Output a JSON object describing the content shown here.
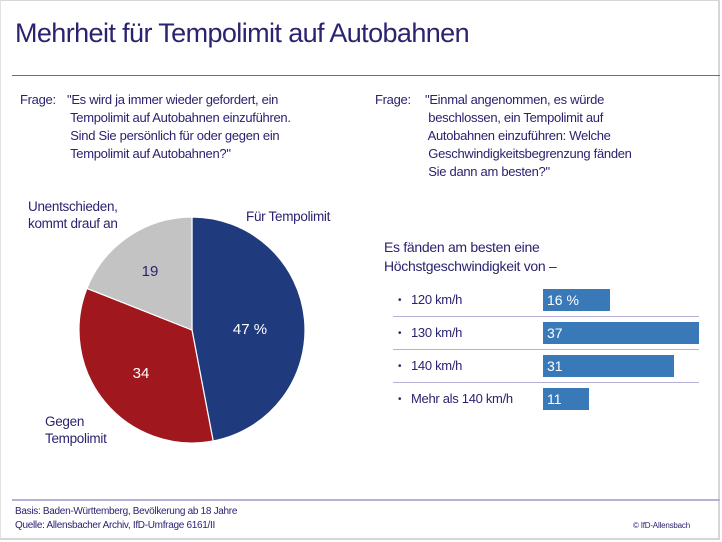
{
  "title": "Mehrheit für Tempolimit auf Autobahnen",
  "question1": {
    "label": "Frage:",
    "text": "\"Es wird ja immer wieder gefordert, ein\n Tempolimit auf Autobahnen einzuführen.\n Sind Sie persönlich für oder gegen ein\n Tempolimit auf Autobahnen?\""
  },
  "question2": {
    "label": "Frage:",
    "text": "\"Einmal angenommen, es würde\n beschlossen, ein Tempolimit auf\n Autobahnen einzuführen: Welche\n Geschwindigkeitsbegrenzung fänden\n Sie dann am besten?\""
  },
  "footer": {
    "basis": "Basis: Baden-Württemberg, Bevölkerung ab 18 Jahre",
    "quelle": "Quelle: Allensbacher Archiv, IfD-Umfrage 6161/II",
    "copyright": "© IfD-Allensbach"
  },
  "colors": {
    "fuer": "#1f3a7d",
    "gegen": "#a0181e",
    "unentschieden": "#c4c3c3",
    "bar": "#3a79b8",
    "text": "#2a2370"
  },
  "chart_data": [
    {
      "type": "pie",
      "title": "",
      "slices": [
        {
          "label": "Für Tempolimit",
          "value": 47,
          "display": "47 %"
        },
        {
          "label": "Gegen\nTempolimit",
          "value": 34,
          "display": "34"
        },
        {
          "label": "Unentschieden,\nkommt drauf an",
          "value": 19,
          "display": "19"
        }
      ],
      "start_angle": "12 o'clock",
      "direction": "clockwise",
      "unit": "%"
    },
    {
      "type": "bar",
      "orientation": "horizontal",
      "title": "Es fänden am besten eine\nHöchstgeschwindigkeit von –",
      "categories": [
        "120 km/h",
        "130 km/h",
        "140 km/h",
        "Mehr als 140 km/h"
      ],
      "values": [
        16,
        37,
        31,
        11
      ],
      "value_labels": [
        "16 %",
        "37",
        "31",
        "11"
      ],
      "unit": "%",
      "xlim": [
        0,
        37
      ]
    }
  ]
}
